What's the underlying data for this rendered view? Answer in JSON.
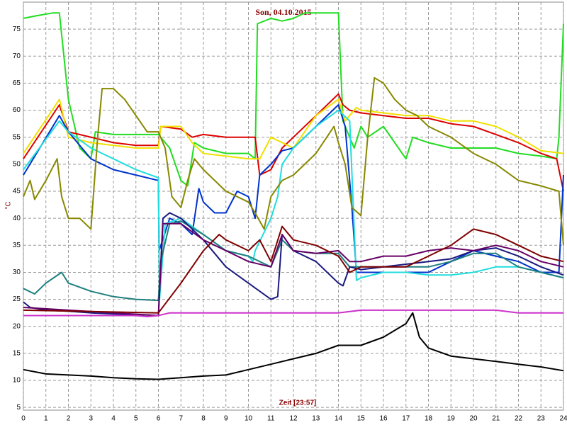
{
  "chart_data": {
    "type": "line",
    "title": "Son, 04.10.2015",
    "xlabel": "Zeit [23:57]",
    "ylabel": "°C",
    "xlim": [
      0,
      24
    ],
    "ylim": [
      4.5,
      80
    ],
    "xticks": [
      0,
      1,
      2,
      3,
      4,
      5,
      6,
      7,
      8,
      9,
      10,
      11,
      12,
      13,
      14,
      15,
      16,
      17,
      18,
      19,
      20,
      21,
      22,
      23,
      24
    ],
    "yticks": [
      5,
      10,
      15,
      20,
      25,
      30,
      35,
      40,
      45,
      50,
      55,
      60,
      65,
      70,
      75
    ],
    "grid": true,
    "series": [
      {
        "color": "#22dd22",
        "x": [
          0,
          0.6,
          1.3,
          1.6,
          2,
          2.5,
          3,
          3.2,
          4,
          5,
          6,
          6.5,
          7,
          7.3,
          7.6,
          8,
          9,
          10,
          10.3,
          10.4,
          11,
          11.5,
          12,
          12.5,
          13,
          14,
          14.2,
          14.5,
          14.7,
          15,
          15.3,
          16,
          17,
          17.3,
          18,
          19,
          20,
          21,
          22,
          23,
          23.7,
          23.8,
          24
        ],
        "values": [
          77,
          77.5,
          78,
          78,
          62,
          53,
          51,
          56,
          55.5,
          55.5,
          55.5,
          53,
          47,
          46,
          54,
          53,
          52,
          52,
          51,
          76,
          77,
          76.5,
          77,
          78,
          78,
          78,
          58,
          55,
          53,
          57,
          55,
          57,
          51,
          55,
          54,
          53,
          53,
          53,
          52,
          51.5,
          51,
          55,
          76
        ]
      },
      {
        "color": "#dd0000",
        "x": [
          0,
          1.6,
          2,
          3,
          4,
          5,
          6,
          6.1,
          7,
          7.5,
          8,
          9,
          10,
          10.3,
          10.5,
          11,
          11.5,
          12,
          13,
          14,
          14.2,
          14.5,
          15,
          16,
          17,
          18,
          19,
          20,
          21,
          22,
          23,
          23.7,
          24
        ],
        "values": [
          51,
          61,
          56,
          55,
          54,
          53.5,
          53.5,
          57,
          56.5,
          55,
          55.5,
          55,
          55,
          55,
          48,
          49,
          53,
          55,
          59,
          63,
          61,
          60,
          59.5,
          59,
          58.5,
          58.5,
          57.5,
          57,
          55.5,
          54,
          52,
          51,
          45
        ]
      },
      {
        "color": "#f0e000",
        "x": [
          0,
          1.6,
          2,
          3,
          4,
          5,
          6,
          6.1,
          7,
          7.5,
          8,
          9,
          10,
          10.5,
          11,
          12,
          13,
          14,
          14.3,
          14.8,
          15,
          16,
          17,
          18,
          19,
          20,
          21,
          22,
          23,
          24
        ],
        "values": [
          52,
          62,
          55,
          54,
          53.5,
          53,
          53,
          57,
          57,
          54,
          52,
          51.5,
          51,
          51,
          55,
          53,
          59,
          62,
          58,
          60.5,
          60,
          59.5,
          59,
          59,
          58,
          58,
          57,
          55,
          52.5,
          52
        ]
      },
      {
        "color": "#0033cc",
        "x": [
          0,
          1.6,
          2,
          3,
          4,
          5,
          6,
          6.03,
          6.5,
          7,
          7.5,
          7.8,
          8,
          8.5,
          9,
          9.5,
          10,
          10.3,
          10.5,
          11,
          11.5,
          12,
          13,
          14,
          14.3,
          14.6,
          14.8,
          15,
          16,
          17,
          18,
          19,
          20,
          21,
          22,
          23,
          23.8,
          24
        ],
        "values": [
          48,
          59,
          56,
          51,
          49,
          48,
          47,
          34,
          40,
          39,
          37,
          45.5,
          43,
          41,
          41,
          45,
          44,
          40,
          48,
          50,
          52.5,
          53,
          57,
          61,
          57,
          42,
          30,
          30,
          30,
          30,
          30,
          32,
          34,
          33,
          32,
          30,
          30,
          48
        ]
      },
      {
        "color": "#22dddd",
        "x": [
          0,
          1.6,
          2,
          3,
          4,
          5,
          6,
          6.05,
          6.3,
          7,
          8,
          9,
          10,
          10.2,
          10.3,
          11,
          11.3,
          11.5,
          12,
          13,
          14,
          14.5,
          14.8,
          15,
          16,
          17,
          18,
          19,
          20,
          21,
          22,
          23,
          24
        ],
        "values": [
          49,
          58,
          56,
          53,
          51,
          49,
          47.5,
          25,
          39,
          40,
          37,
          34,
          33,
          32,
          34,
          40,
          44,
          50,
          53,
          57,
          60,
          58,
          28.5,
          29,
          30,
          30,
          29.5,
          29.5,
          30,
          31,
          31,
          30,
          29
        ]
      },
      {
        "color": "#888800",
        "x": [
          0,
          0.3,
          0.5,
          1,
          1.5,
          1.7,
          2,
          2.5,
          3,
          3.3,
          3.5,
          4,
          4.5,
          5,
          5.5,
          6,
          6.3,
          6.6,
          7,
          7.3,
          7.6,
          8,
          9,
          10,
          10.3,
          10.7,
          11,
          11.5,
          12,
          13,
          13.8,
          14,
          14.3,
          14.6,
          15,
          15.3,
          15.6,
          16,
          16.5,
          17,
          17.5,
          18,
          19,
          20,
          21,
          22,
          23,
          23.8,
          24
        ],
        "values": [
          44,
          47,
          43.5,
          47,
          51,
          44,
          40,
          40,
          38,
          55,
          64,
          64,
          62,
          59,
          56,
          56,
          53,
          44,
          42,
          47,
          51,
          49,
          45,
          43,
          41,
          38,
          44,
          47,
          48,
          52,
          57,
          54,
          50,
          42,
          40.5,
          55,
          66,
          65,
          62,
          60,
          59,
          57,
          55,
          52,
          50,
          47,
          46,
          45,
          35
        ]
      },
      {
        "color": "#1e7f7f",
        "x": [
          0,
          0.5,
          1,
          1.7,
          2,
          3,
          4,
          5,
          6,
          6.1,
          6.5,
          7,
          8,
          9,
          10,
          11,
          11.5,
          12,
          13,
          14,
          14.5,
          15,
          16,
          17,
          18,
          19,
          20,
          21,
          22,
          23,
          24
        ],
        "values": [
          27,
          26,
          28,
          30,
          28,
          26.5,
          25.5,
          25,
          24.8,
          32,
          39,
          39.5,
          37,
          34,
          33,
          31,
          36,
          34,
          33.5,
          33.5,
          31,
          31,
          31,
          31,
          31,
          32,
          33.5,
          33.5,
          31,
          30,
          29
        ]
      },
      {
        "color": "#1a1a80",
        "x": [
          0,
          0.3,
          1,
          2,
          3,
          4,
          5,
          6,
          6.2,
          6.5,
          7,
          8,
          9,
          10,
          11,
          11.3,
          11.5,
          12,
          13,
          14,
          14.2,
          14.5,
          15,
          16,
          17,
          18,
          19,
          20,
          21,
          22,
          23,
          24
        ],
        "values": [
          24.5,
          23.5,
          23,
          22.8,
          22.5,
          22.3,
          22.2,
          22,
          40,
          41,
          40,
          36,
          31,
          28,
          25,
          25.5,
          37,
          34,
          32,
          28,
          27.5,
          31,
          30.5,
          31,
          31.5,
          32,
          32.5,
          34,
          34.5,
          33,
          31,
          29.5
        ]
      },
      {
        "color": "#660066",
        "x": [
          0,
          6,
          6.2,
          7,
          8,
          9,
          10,
          11,
          11.5,
          12,
          13,
          14,
          14.5,
          15,
          16,
          17,
          18,
          19,
          20,
          21,
          22,
          23,
          24
        ],
        "values": [
          23.5,
          22,
          39,
          39,
          36,
          34,
          32,
          31,
          37,
          34,
          33.5,
          34,
          32,
          32,
          33,
          33,
          34,
          34.5,
          34,
          35,
          34,
          32,
          31
        ]
      },
      {
        "color": "#800000",
        "x": [
          0,
          6,
          7,
          8,
          8.7,
          9,
          10,
          10.5,
          11,
          11.5,
          12,
          13,
          14,
          14.5,
          15,
          16,
          17,
          18,
          19,
          20,
          21,
          21.5,
          22,
          23,
          24
        ],
        "values": [
          23,
          22.5,
          28,
          34,
          37,
          36,
          34,
          36,
          32,
          38.5,
          36,
          35,
          33,
          30,
          31,
          31,
          31,
          33,
          35,
          38,
          37,
          36,
          35,
          33,
          32
        ]
      },
      {
        "color": "#cc33cc",
        "x": [
          0,
          5,
          5.5,
          6,
          6.5,
          7,
          8,
          9,
          10,
          11,
          12,
          13,
          14,
          15,
          16,
          17,
          18,
          19,
          20,
          21,
          22,
          23,
          24
        ],
        "values": [
          22,
          22,
          21.8,
          22,
          22.5,
          22.5,
          22.5,
          22.5,
          22.5,
          22.5,
          22.5,
          22.5,
          22.5,
          23,
          23,
          23,
          23,
          23,
          23,
          23,
          22.5,
          22.5,
          22.5
        ]
      },
      {
        "color": "#000000",
        "x": [
          0,
          1,
          2,
          3,
          4,
          5,
          6,
          7,
          8,
          9,
          10,
          11,
          12,
          13,
          14,
          15,
          16,
          17,
          17.3,
          17.6,
          18,
          19,
          20,
          21,
          22,
          23,
          24
        ],
        "values": [
          12,
          11.2,
          11,
          10.8,
          10.5,
          10.3,
          10.2,
          10.5,
          10.8,
          11,
          12,
          13,
          14,
          15,
          16.5,
          16.5,
          18,
          20.5,
          22.5,
          18,
          16,
          14.5,
          14,
          13.5,
          13,
          12.5,
          11.8
        ]
      }
    ]
  }
}
